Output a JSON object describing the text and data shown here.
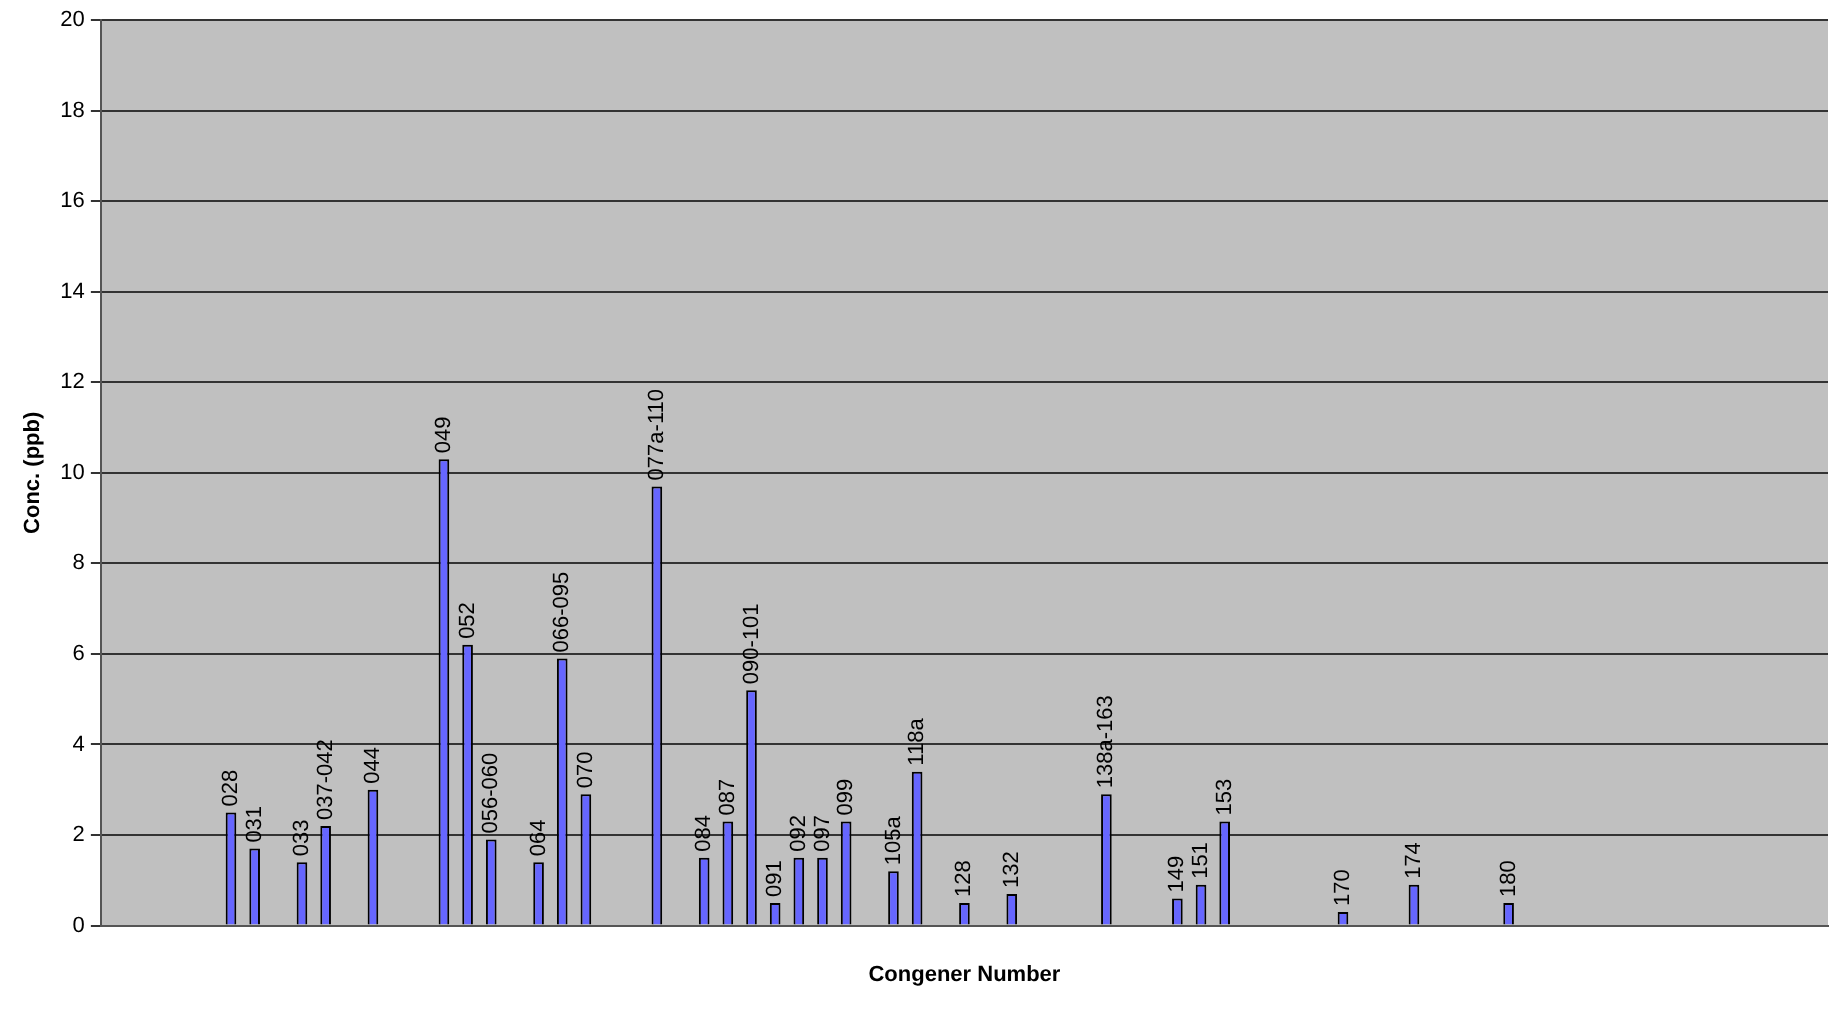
{
  "chart_data": {
    "type": "bar",
    "xlabel": "Congener Number",
    "ylabel": "Conc. (ppb)",
    "categories": [
      null,
      null,
      null,
      null,
      null,
      "028",
      "031",
      null,
      "033",
      "037-042",
      null,
      "044",
      null,
      null,
      "049",
      "052",
      "056-060",
      null,
      "064",
      "066-095",
      "070",
      null,
      null,
      "077a-110",
      null,
      "084",
      "087",
      "090-101",
      "091",
      "092",
      "097",
      "099",
      null,
      "105a",
      "118a",
      null,
      "128",
      null,
      "132",
      null,
      null,
      null,
      "138a-163",
      null,
      null,
      "149",
      "151",
      "153",
      null,
      null,
      null,
      null,
      "170",
      null,
      null,
      "174",
      null,
      null,
      null,
      "180",
      null,
      null,
      null,
      null,
      null,
      null,
      null,
      null,
      null,
      null,
      null,
      null,
      null
    ],
    "values": [
      null,
      null,
      null,
      null,
      null,
      2.5,
      1.7,
      null,
      1.4,
      2.2,
      null,
      3.0,
      null,
      null,
      10.3,
      6.2,
      1.9,
      null,
      1.4,
      5.9,
      2.9,
      null,
      null,
      9.7,
      null,
      1.5,
      2.3,
      5.2,
      0.5,
      1.5,
      1.5,
      2.3,
      null,
      1.2,
      3.4,
      null,
      0.5,
      null,
      0.7,
      null,
      null,
      null,
      2.9,
      null,
      null,
      0.6,
      0.9,
      2.3,
      null,
      null,
      null,
      null,
      0.3,
      null,
      null,
      0.9,
      null,
      null,
      null,
      0.5,
      null,
      null,
      null,
      null,
      null,
      null,
      null,
      null,
      null,
      null,
      null,
      null,
      null
    ],
    "color": "#6666ff",
    "ylim": [
      0,
      20
    ],
    "yticks": [
      0,
      2,
      4,
      6,
      8,
      10,
      12,
      14,
      16,
      18,
      20
    ],
    "grid": "y",
    "legend": false,
    "tick_labels": "y"
  }
}
